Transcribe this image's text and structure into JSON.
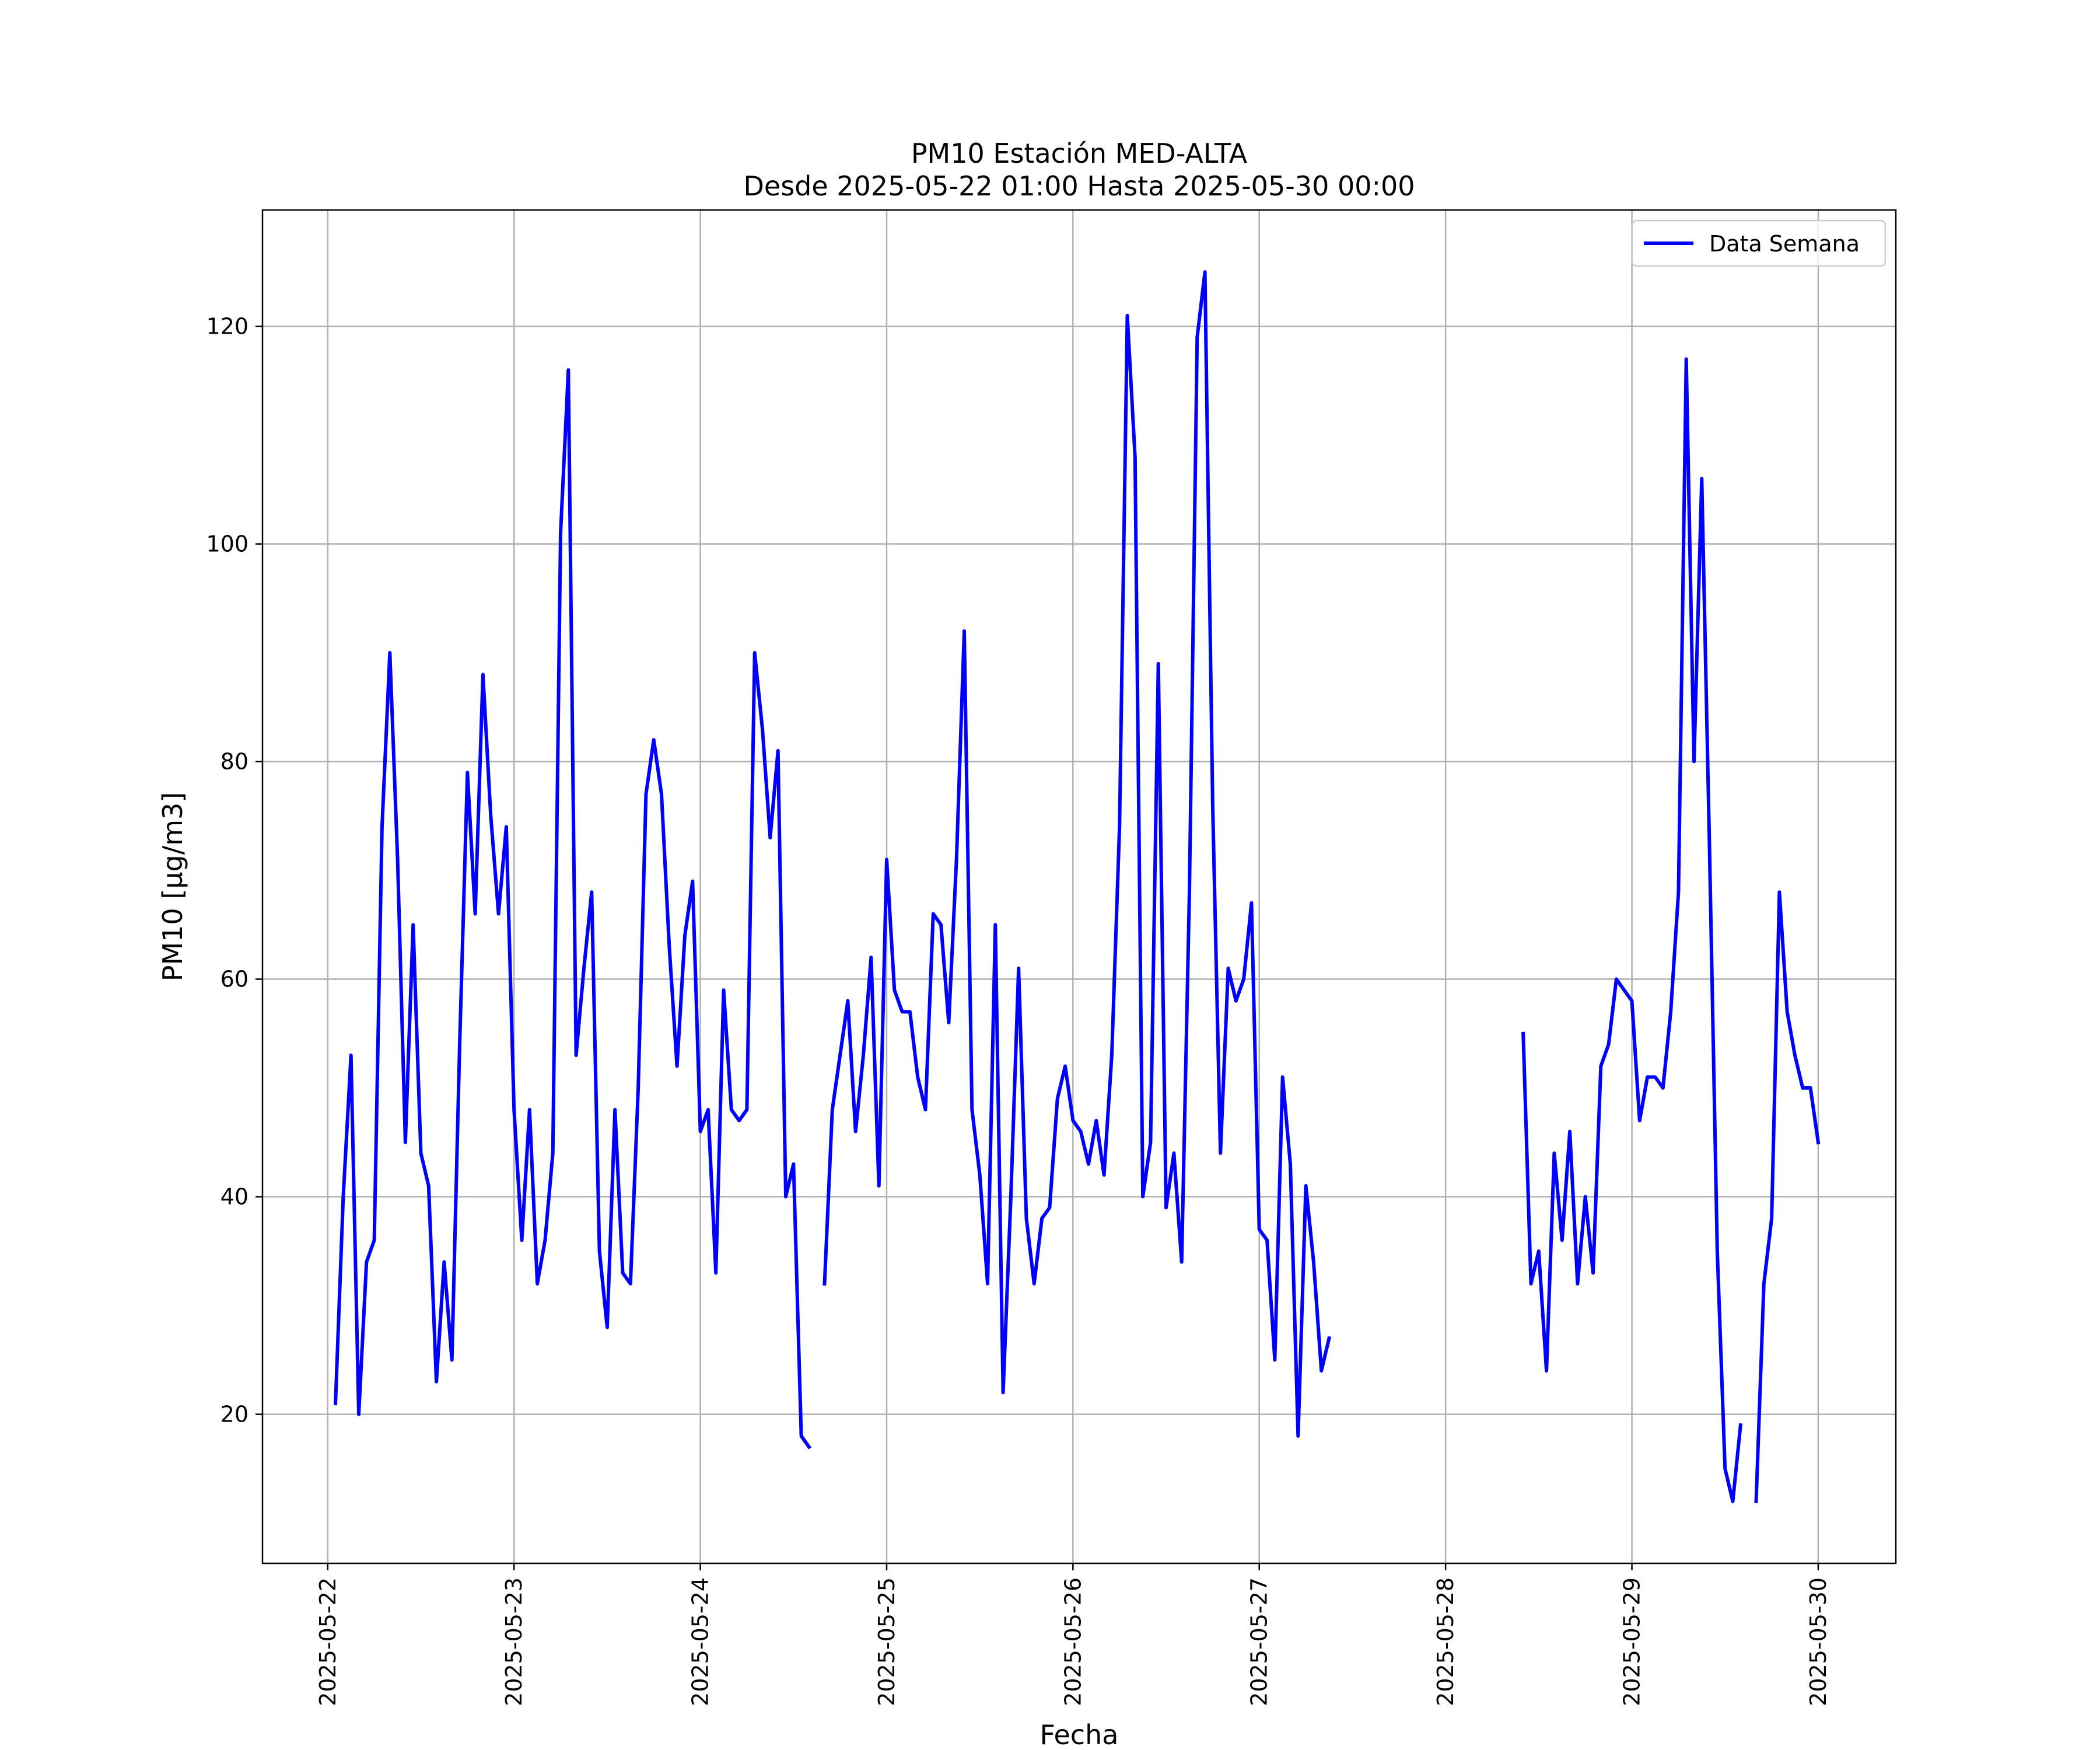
{
  "chart_data": {
    "type": "line",
    "title": "PM10 Estación MED-ALTA",
    "subtitle": "Desde 2025-05-22 01:00 Hasta 2025-05-30 00:00",
    "xlabel": "Fecha",
    "ylabel": "PM10 [μg/m3]",
    "xlim": [
      "2025-05-21 15:36",
      "2025-05-30 10:00"
    ],
    "ylim": [
      6.3,
      130.7
    ],
    "yticks": [
      20,
      40,
      60,
      80,
      100,
      120
    ],
    "xticks": [
      "2025-05-22",
      "2025-05-23",
      "2025-05-24",
      "2025-05-25",
      "2025-05-26",
      "2025-05-27",
      "2025-05-28",
      "2025-05-29",
      "2025-05-30"
    ],
    "grid": true,
    "legend": "top-right",
    "line_color": "#0000ff",
    "series": [
      {
        "name": "Data Semana",
        "points": [
          [
            "2025-05-22 01:00",
            21
          ],
          [
            "2025-05-22 02:00",
            40
          ],
          [
            "2025-05-22 03:00",
            53
          ],
          [
            "2025-05-22 04:00",
            20
          ],
          [
            "2025-05-22 05:00",
            34
          ],
          [
            "2025-05-22 06:00",
            36
          ],
          [
            "2025-05-22 07:00",
            74
          ],
          [
            "2025-05-22 08:00",
            90
          ],
          [
            "2025-05-22 09:00",
            71
          ],
          [
            "2025-05-22 10:00",
            45
          ],
          [
            "2025-05-22 11:00",
            65
          ],
          [
            "2025-05-22 12:00",
            44
          ],
          [
            "2025-05-22 13:00",
            41
          ],
          [
            "2025-05-22 14:00",
            23
          ],
          [
            "2025-05-22 15:00",
            34
          ],
          [
            "2025-05-22 16:00",
            25
          ],
          [
            "2025-05-22 17:00",
            54
          ],
          [
            "2025-05-22 18:00",
            79
          ],
          [
            "2025-05-22 19:00",
            66
          ],
          [
            "2025-05-22 20:00",
            88
          ],
          [
            "2025-05-22 21:00",
            75
          ],
          [
            "2025-05-22 22:00",
            66
          ],
          [
            "2025-05-22 23:00",
            74
          ],
          [
            "2025-05-23 00:00",
            48
          ],
          [
            "2025-05-23 01:00",
            36
          ],
          [
            "2025-05-23 02:00",
            48
          ],
          [
            "2025-05-23 03:00",
            32
          ],
          [
            "2025-05-23 04:00",
            36
          ],
          [
            "2025-05-23 05:00",
            44
          ],
          [
            "2025-05-23 06:00",
            101
          ],
          [
            "2025-05-23 07:00",
            116
          ],
          [
            "2025-05-23 08:00",
            53
          ],
          [
            "2025-05-23 09:00",
            61
          ],
          [
            "2025-05-23 10:00",
            68
          ],
          [
            "2025-05-23 11:00",
            35
          ],
          [
            "2025-05-23 12:00",
            28
          ],
          [
            "2025-05-23 13:00",
            48
          ],
          [
            "2025-05-23 14:00",
            33
          ],
          [
            "2025-05-23 15:00",
            32
          ],
          [
            "2025-05-23 16:00",
            50
          ],
          [
            "2025-05-23 17:00",
            77
          ],
          [
            "2025-05-23 18:00",
            82
          ],
          [
            "2025-05-23 19:00",
            77
          ],
          [
            "2025-05-23 20:00",
            63
          ],
          [
            "2025-05-23 21:00",
            52
          ],
          [
            "2025-05-23 22:00",
            64
          ],
          [
            "2025-05-23 23:00",
            69
          ],
          [
            "2025-05-24 00:00",
            46
          ],
          [
            "2025-05-24 01:00",
            48
          ],
          [
            "2025-05-24 02:00",
            33
          ],
          [
            "2025-05-24 03:00",
            59
          ],
          [
            "2025-05-24 04:00",
            48
          ],
          [
            "2025-05-24 05:00",
            47
          ],
          [
            "2025-05-24 06:00",
            48
          ],
          [
            "2025-05-24 07:00",
            90
          ],
          [
            "2025-05-24 08:00",
            83
          ],
          [
            "2025-05-24 09:00",
            73
          ],
          [
            "2025-05-24 10:00",
            81
          ],
          [
            "2025-05-24 11:00",
            40
          ],
          [
            "2025-05-24 12:00",
            43
          ],
          [
            "2025-05-24 13:00",
            18
          ],
          [
            "2025-05-24 14:00",
            17
          ],
          [
            "2025-05-24 15:00",
            null
          ],
          [
            "2025-05-24 16:00",
            32
          ],
          [
            "2025-05-24 17:00",
            48
          ],
          [
            "2025-05-24 18:00",
            53
          ],
          [
            "2025-05-24 19:00",
            58
          ],
          [
            "2025-05-24 20:00",
            46
          ],
          [
            "2025-05-24 21:00",
            53
          ],
          [
            "2025-05-24 22:00",
            62
          ],
          [
            "2025-05-24 23:00",
            41
          ],
          [
            "2025-05-25 00:00",
            71
          ],
          [
            "2025-05-25 01:00",
            59
          ],
          [
            "2025-05-25 02:00",
            57
          ],
          [
            "2025-05-25 03:00",
            57
          ],
          [
            "2025-05-25 04:00",
            51
          ],
          [
            "2025-05-25 05:00",
            48
          ],
          [
            "2025-05-25 06:00",
            66
          ],
          [
            "2025-05-25 07:00",
            65
          ],
          [
            "2025-05-25 08:00",
            56
          ],
          [
            "2025-05-25 09:00",
            71
          ],
          [
            "2025-05-25 10:00",
            92
          ],
          [
            "2025-05-25 11:00",
            48
          ],
          [
            "2025-05-25 12:00",
            42
          ],
          [
            "2025-05-25 13:00",
            32
          ],
          [
            "2025-05-25 14:00",
            65
          ],
          [
            "2025-05-25 15:00",
            22
          ],
          [
            "2025-05-25 16:00",
            40
          ],
          [
            "2025-05-25 17:00",
            61
          ],
          [
            "2025-05-25 18:00",
            38
          ],
          [
            "2025-05-25 19:00",
            32
          ],
          [
            "2025-05-25 20:00",
            38
          ],
          [
            "2025-05-25 21:00",
            39
          ],
          [
            "2025-05-25 22:00",
            49
          ],
          [
            "2025-05-25 23:00",
            52
          ],
          [
            "2025-05-26 00:00",
            47
          ],
          [
            "2025-05-26 01:00",
            46
          ],
          [
            "2025-05-26 02:00",
            43
          ],
          [
            "2025-05-26 03:00",
            47
          ],
          [
            "2025-05-26 04:00",
            42
          ],
          [
            "2025-05-26 05:00",
            53
          ],
          [
            "2025-05-26 06:00",
            74
          ],
          [
            "2025-05-26 07:00",
            121
          ],
          [
            "2025-05-26 08:00",
            108
          ],
          [
            "2025-05-26 09:00",
            40
          ],
          [
            "2025-05-26 10:00",
            45
          ],
          [
            "2025-05-26 11:00",
            89
          ],
          [
            "2025-05-26 12:00",
            39
          ],
          [
            "2025-05-26 13:00",
            44
          ],
          [
            "2025-05-26 14:00",
            34
          ],
          [
            "2025-05-26 15:00",
            68
          ],
          [
            "2025-05-26 16:00",
            119
          ],
          [
            "2025-05-26 17:00",
            125
          ],
          [
            "2025-05-26 18:00",
            76
          ],
          [
            "2025-05-26 19:00",
            44
          ],
          [
            "2025-05-26 20:00",
            61
          ],
          [
            "2025-05-26 21:00",
            58
          ],
          [
            "2025-05-26 22:00",
            60
          ],
          [
            "2025-05-26 23:00",
            67
          ],
          [
            "2025-05-27 00:00",
            37
          ],
          [
            "2025-05-27 01:00",
            36
          ],
          [
            "2025-05-27 02:00",
            25
          ],
          [
            "2025-05-27 03:00",
            51
          ],
          [
            "2025-05-27 04:00",
            43
          ],
          [
            "2025-05-27 05:00",
            18
          ],
          [
            "2025-05-27 06:00",
            41
          ],
          [
            "2025-05-27 07:00",
            34
          ],
          [
            "2025-05-27 08:00",
            24
          ],
          [
            "2025-05-27 09:00",
            27
          ],
          [
            "2025-05-27 10:00",
            null
          ],
          [
            "2025-05-28 10:00",
            55
          ],
          [
            "2025-05-28 11:00",
            32
          ],
          [
            "2025-05-28 12:00",
            35
          ],
          [
            "2025-05-28 13:00",
            24
          ],
          [
            "2025-05-28 14:00",
            44
          ],
          [
            "2025-05-28 15:00",
            36
          ],
          [
            "2025-05-28 16:00",
            46
          ],
          [
            "2025-05-28 17:00",
            32
          ],
          [
            "2025-05-28 18:00",
            40
          ],
          [
            "2025-05-28 19:00",
            33
          ],
          [
            "2025-05-28 20:00",
            52
          ],
          [
            "2025-05-28 21:00",
            54
          ],
          [
            "2025-05-28 22:00",
            60
          ],
          [
            "2025-05-28 23:00",
            59
          ],
          [
            "2025-05-29 00:00",
            58
          ],
          [
            "2025-05-29 01:00",
            47
          ],
          [
            "2025-05-29 02:00",
            51
          ],
          [
            "2025-05-29 03:00",
            51
          ],
          [
            "2025-05-29 04:00",
            50
          ],
          [
            "2025-05-29 05:00",
            57
          ],
          [
            "2025-05-29 06:00",
            68
          ],
          [
            "2025-05-29 07:00",
            117
          ],
          [
            "2025-05-29 08:00",
            80
          ],
          [
            "2025-05-29 09:00",
            106
          ],
          [
            "2025-05-29 10:00",
            72
          ],
          [
            "2025-05-29 11:00",
            35
          ],
          [
            "2025-05-29 12:00",
            15
          ],
          [
            "2025-05-29 13:00",
            12
          ],
          [
            "2025-05-29 14:00",
            19
          ],
          [
            "2025-05-29 15:00",
            null
          ],
          [
            "2025-05-29 16:00",
            12
          ],
          [
            "2025-05-29 17:00",
            32
          ],
          [
            "2025-05-29 18:00",
            38
          ],
          [
            "2025-05-29 19:00",
            68
          ],
          [
            "2025-05-29 20:00",
            57
          ],
          [
            "2025-05-29 21:00",
            53
          ],
          [
            "2025-05-29 22:00",
            50
          ],
          [
            "2025-05-29 23:00",
            50
          ],
          [
            "2025-05-30 00:00",
            45
          ]
        ]
      }
    ]
  }
}
